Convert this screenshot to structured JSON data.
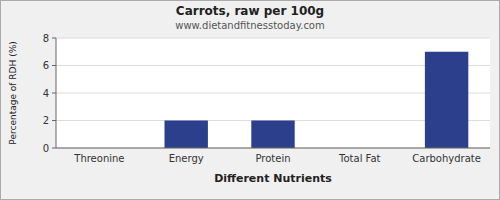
{
  "chart_data": {
    "type": "bar",
    "title": "Carrots, raw per 100g",
    "subtitle": "www.dietandfitnesstoday.com",
    "xlabel": "Different Nutrients",
    "ylabel": "Percentage of RDH (%)",
    "categories": [
      "Threonine",
      "Energy",
      "Protein",
      "Total Fat",
      "Carbohydrate"
    ],
    "values": [
      0,
      2,
      2,
      0,
      7
    ],
    "color": "#2b3f8c",
    "ylim": [
      0,
      8
    ],
    "yticks": [
      0,
      2,
      4,
      6,
      8
    ],
    "grid": true
  }
}
